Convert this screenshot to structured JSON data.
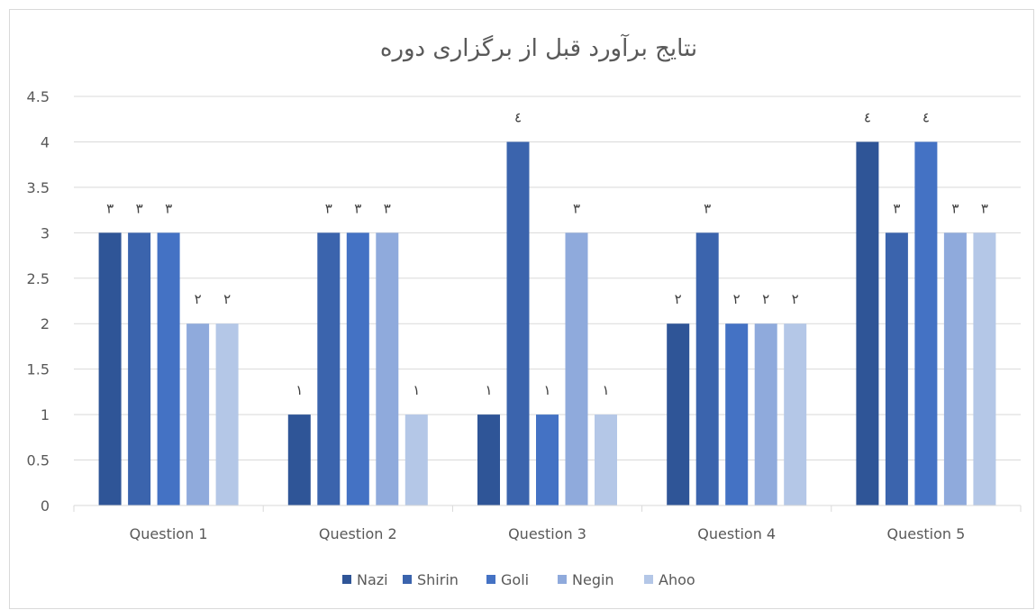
{
  "chart_data": {
    "type": "bar",
    "title": "نتایج برآورد قبل از برگزاری دوره",
    "categories": [
      "Question 1",
      "Question 2",
      "Question 3",
      "Question 4",
      "Question 5"
    ],
    "series": [
      {
        "name": "Nazi",
        "color": "#2f5597",
        "values": [
          3,
          1,
          1,
          2,
          4
        ],
        "labels": [
          "٣",
          "١",
          "١",
          "٢",
          "٤"
        ]
      },
      {
        "name": "Shirin",
        "color": "#3b64ad",
        "values": [
          3,
          3,
          4,
          3,
          3
        ],
        "labels": [
          "٣",
          "٣",
          "٤",
          "٣",
          "٣"
        ]
      },
      {
        "name": "Goli",
        "color": "#4472c4",
        "values": [
          3,
          3,
          1,
          2,
          4
        ],
        "labels": [
          "٣",
          "٣",
          "١",
          "٢",
          "٤"
        ]
      },
      {
        "name": "Negin",
        "color": "#8faadc",
        "values": [
          2,
          3,
          3,
          2,
          3
        ],
        "labels": [
          "٢",
          "٣",
          "٣",
          "٢",
          "٣"
        ]
      },
      {
        "name": "Ahoo",
        "color": "#b4c7e7",
        "values": [
          2,
          1,
          1,
          2,
          3
        ],
        "labels": [
          "٢",
          "١",
          "١",
          "٢",
          "٣"
        ]
      }
    ],
    "yticks": [
      "0",
      "0.5",
      "1",
      "1.5",
      "2",
      "2.5",
      "3",
      "3.5",
      "4",
      "4.5"
    ],
    "ylim": [
      0,
      4.5
    ],
    "grid": true,
    "legend_position": "bottom"
  }
}
